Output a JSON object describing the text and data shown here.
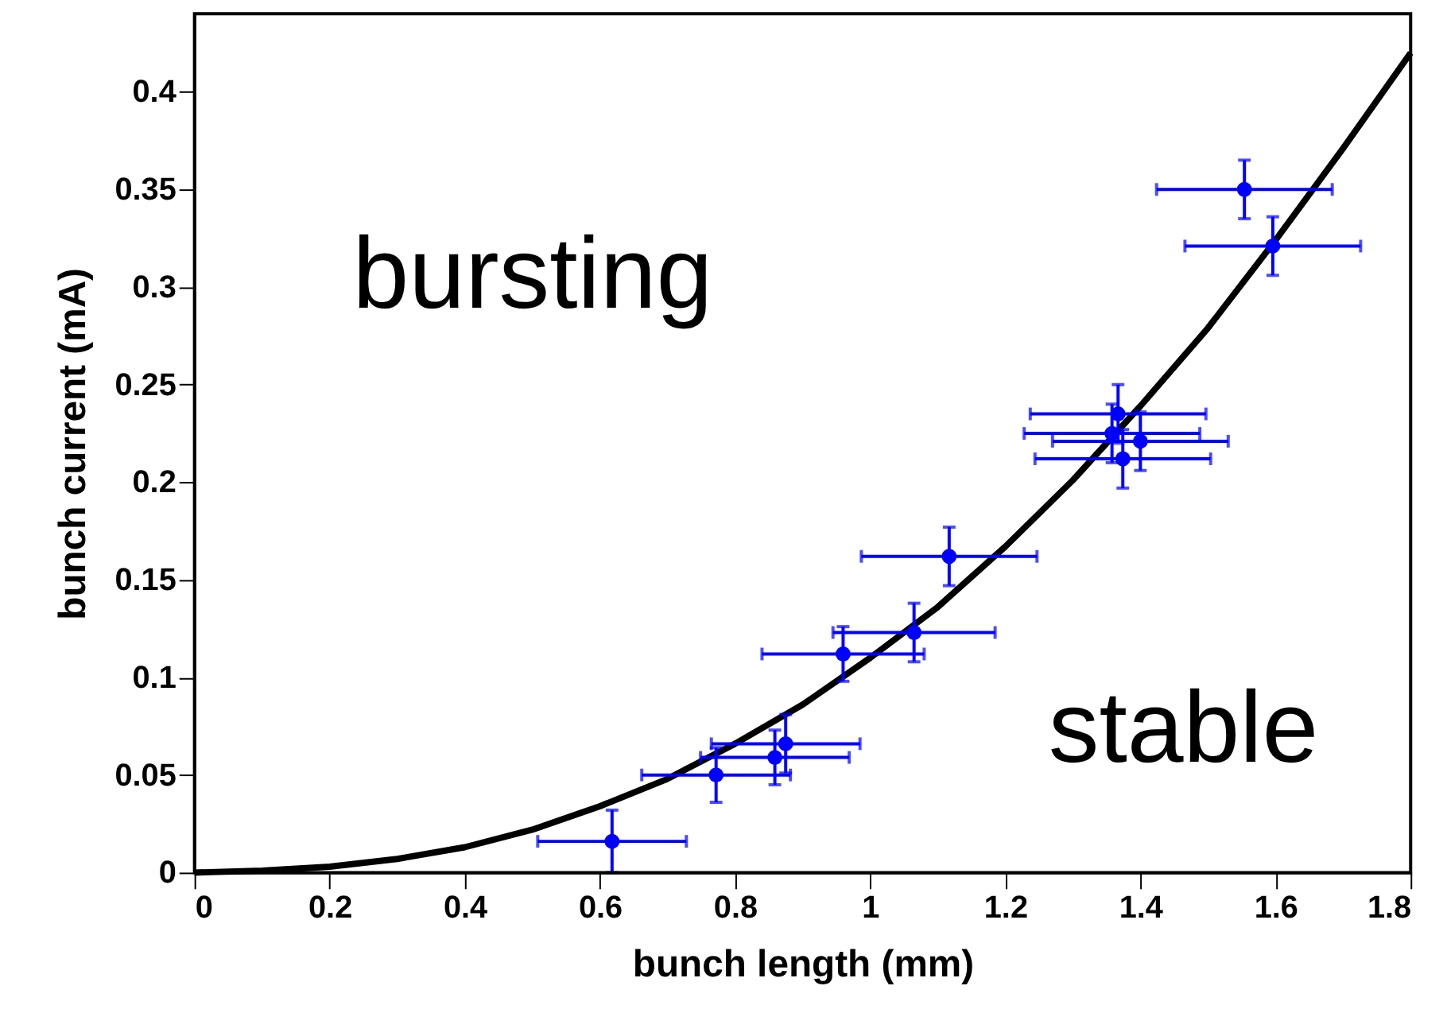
{
  "chart_data": {
    "type": "scatter",
    "xlabel": "bunch length (mm)",
    "ylabel": "bunch current (mA)",
    "annotations": [
      "bursting",
      "stable"
    ],
    "xlim": [
      0,
      1.8
    ],
    "ylim": [
      0,
      0.44
    ],
    "xticks": [
      0,
      0.2,
      0.4,
      0.6,
      0.8,
      1,
      1.2,
      1.4,
      1.6,
      1.8
    ],
    "yticks": [
      0,
      0.05,
      0.1,
      0.15,
      0.2,
      0.25,
      0.3,
      0.35,
      0.4
    ],
    "grid": false,
    "series": [
      {
        "color": "#0000ff",
        "marker": "circle",
        "x": [
          0.618,
          0.772,
          0.859,
          0.875,
          0.96,
          1.065,
          1.117,
          1.358,
          1.367,
          1.4,
          1.374,
          1.554,
          1.596
        ],
        "values": [
          0.016,
          0.05,
          0.059,
          0.066,
          0.112,
          0.123,
          0.162,
          0.225,
          0.235,
          0.221,
          0.212,
          0.35,
          0.321
        ],
        "errors": [
          0.016,
          0.014,
          0.014,
          0.015,
          0.014,
          0.015,
          0.015,
          0.015,
          0.015,
          0.015,
          0.015,
          0.015,
          0.015
        ],
        "xerrors": [
          0.11,
          0.11,
          0.11,
          0.11,
          0.12,
          0.12,
          0.13,
          0.13,
          0.13,
          0.13,
          0.13,
          0.13,
          0.13
        ]
      },
      {
        "type": "line",
        "color": "#000000",
        "line_style": "solid",
        "marker": "none",
        "x": [
          0,
          0.1,
          0.2,
          0.3,
          0.4,
          0.5,
          0.6,
          0.7,
          0.8,
          0.9,
          1.0,
          1.1,
          1.2,
          1.3,
          1.4,
          1.5,
          1.6,
          1.7,
          1.8
        ],
        "values": [
          0,
          0.001,
          0.003,
          0.007,
          0.013,
          0.022,
          0.034,
          0.048,
          0.066,
          0.086,
          0.11,
          0.136,
          0.167,
          0.201,
          0.239,
          0.279,
          0.324,
          0.371,
          0.42
        ]
      }
    ]
  }
}
